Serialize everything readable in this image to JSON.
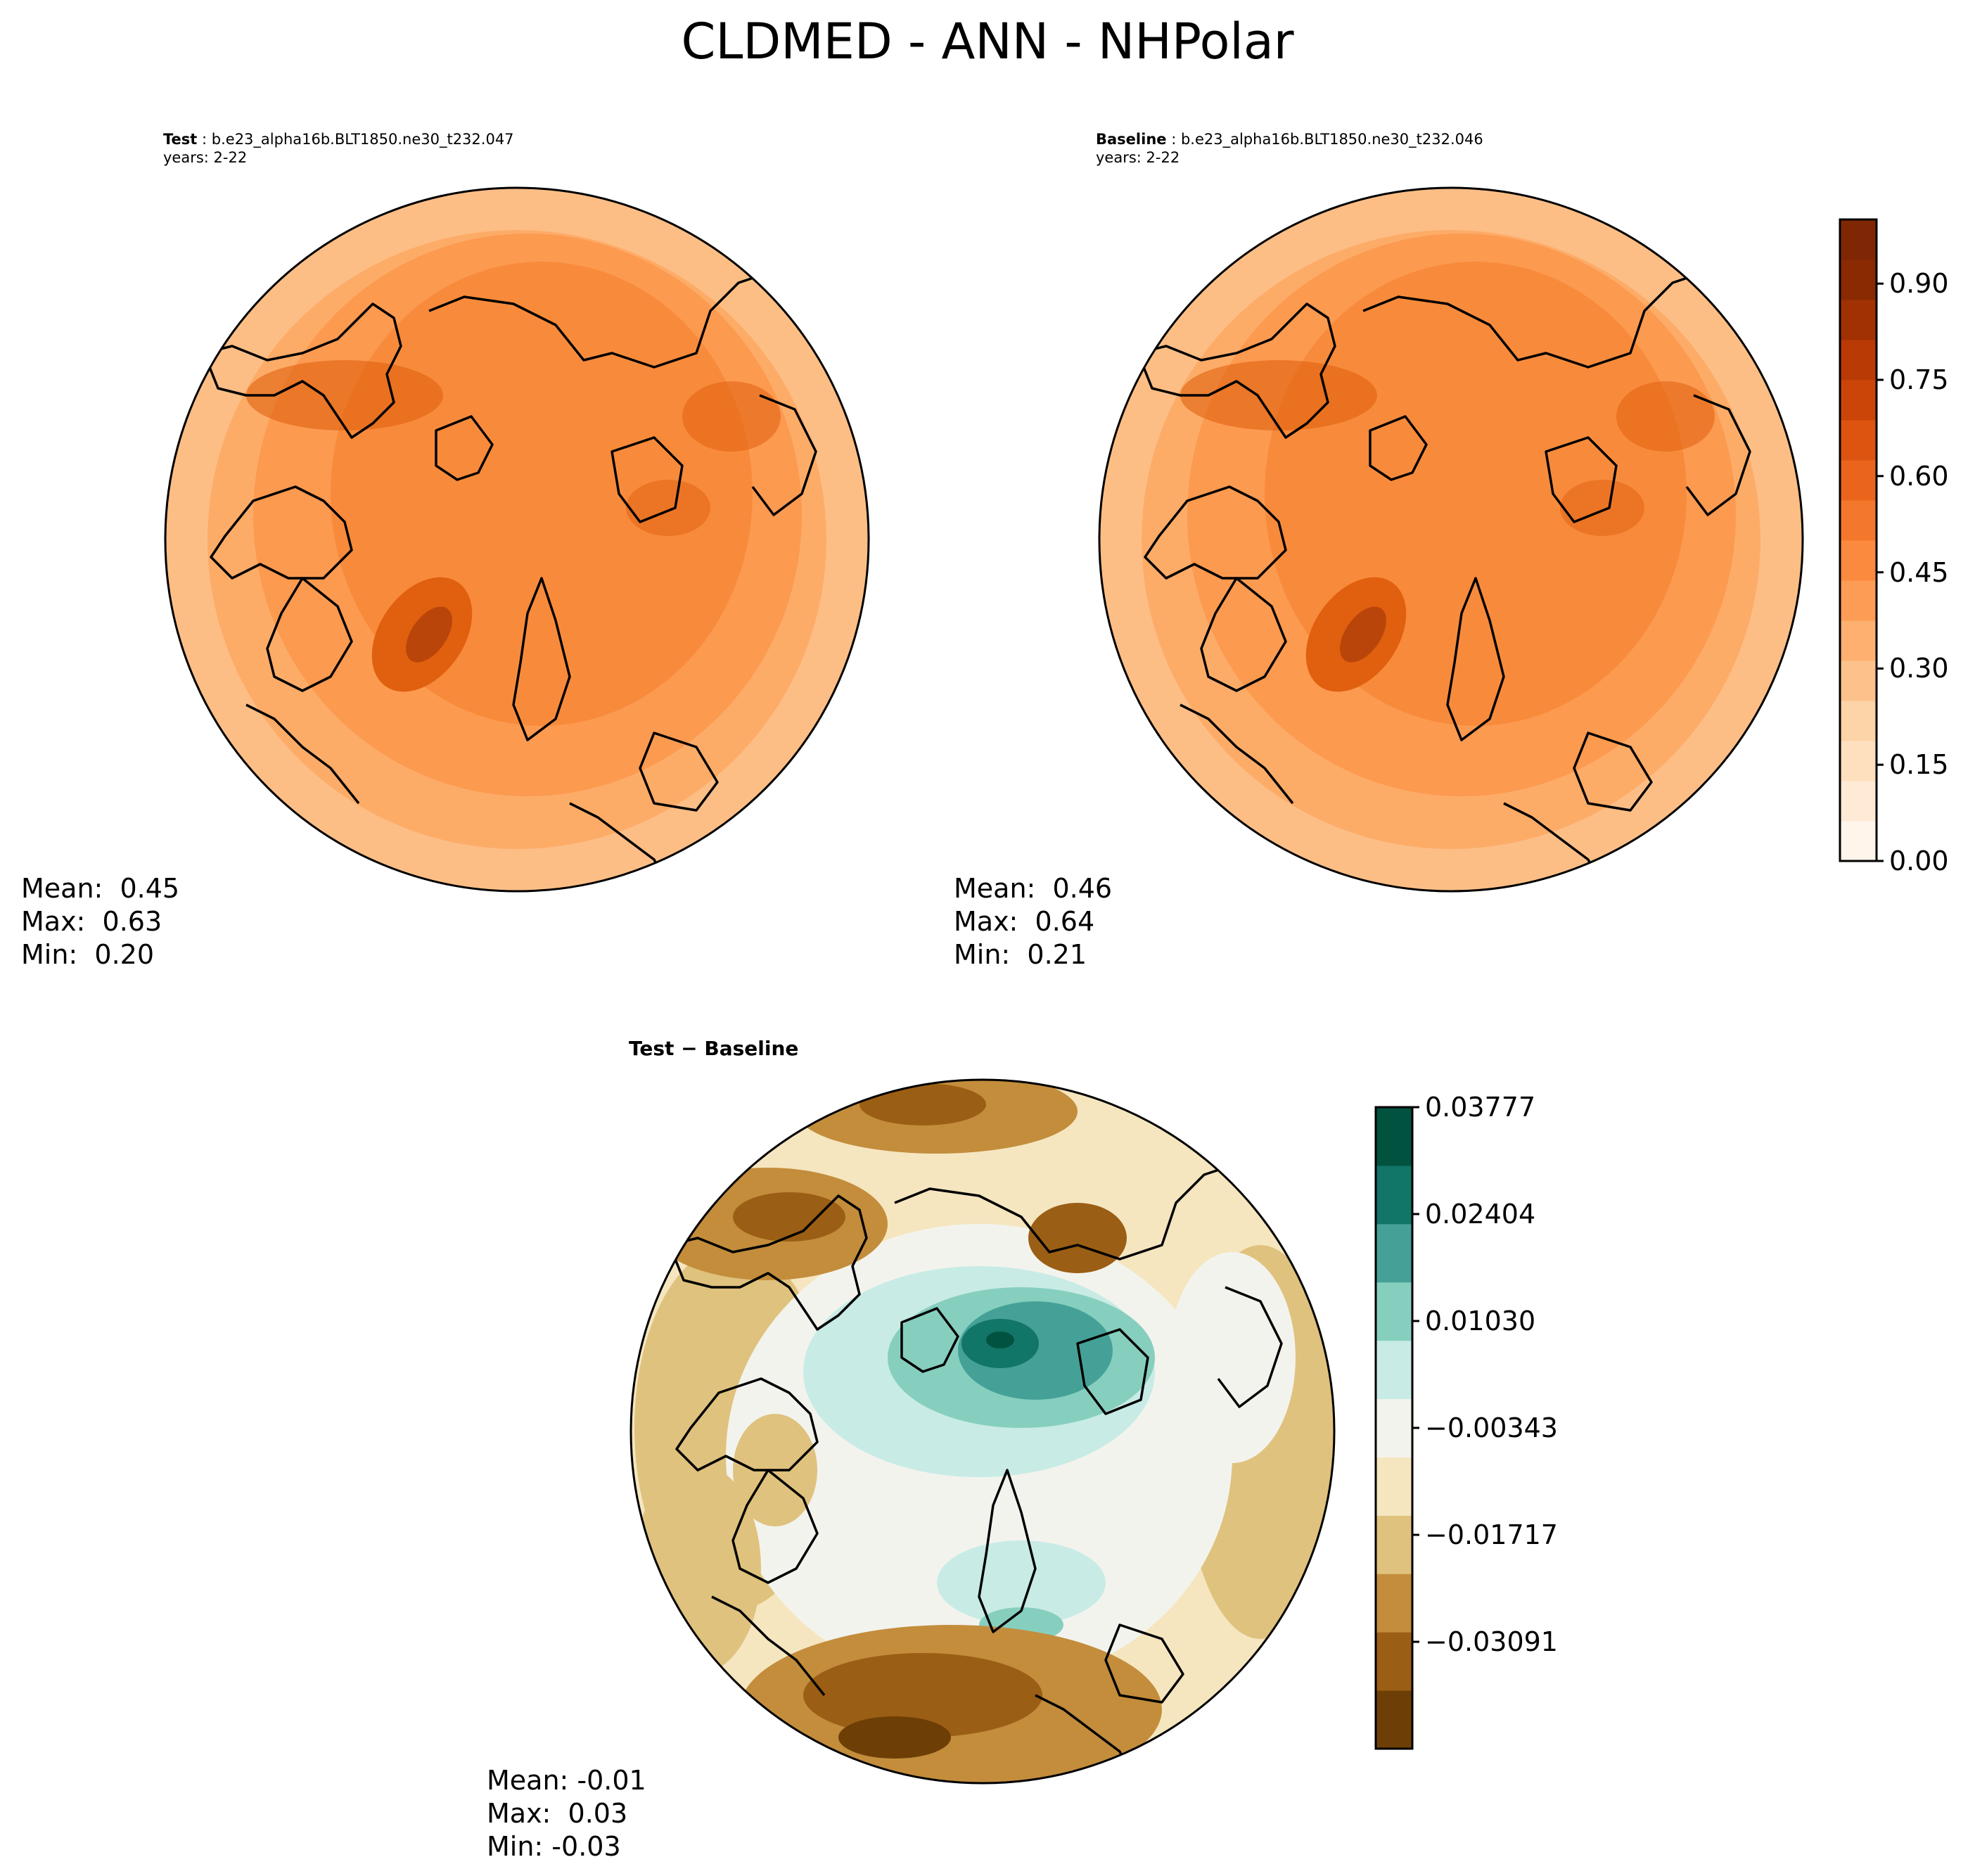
{
  "figure": {
    "title": "CLDMED - ANN - NHPolar"
  },
  "panels": [
    {
      "id": "test",
      "label": "Test",
      "case": "b.e23_alpha16b.BLT1850.ne30_t232.047",
      "years": "years: 2-22",
      "stats": {
        "mean": "Mean:  0.45",
        "max": "Max:  0.63",
        "min": "Min:  0.20"
      }
    },
    {
      "id": "baseline",
      "label": "Baseline",
      "case": "b.e23_alpha16b.BLT1850.ne30_t232.046",
      "years": "years: 2-22",
      "stats": {
        "mean": "Mean:  0.46",
        "max": "Max:  0.64",
        "min": "Min:  0.21"
      }
    },
    {
      "id": "diff",
      "label": "Test − Baseline",
      "stats": {
        "mean": "Mean: -0.01",
        "max": "Max:  0.03",
        "min": "Min: -0.03"
      }
    }
  ],
  "colorbars": {
    "main": {
      "ticks": [
        "0.00",
        "0.15",
        "0.30",
        "0.45",
        "0.60",
        "0.75",
        "0.90"
      ],
      "tick_values": [
        0.0,
        0.15,
        0.3,
        0.45,
        0.6,
        0.75,
        0.9
      ],
      "range": [
        0.0,
        1.0
      ],
      "colors": [
        "#fff5eb",
        "#feead5",
        "#fee0bf",
        "#fdd3a8",
        "#fdc28c",
        "#fdb06f",
        "#fd9d55",
        "#fc8a3e",
        "#f4782b",
        "#ea651b",
        "#dd5410",
        "#cc4508",
        "#b93a05",
        "#a13103",
        "#8a2a03",
        "#7f2704"
      ]
    },
    "diff": {
      "ticks": [
        "0.03777",
        "0.02404",
        "0.01030",
        "−0.00343",
        "−0.01717",
        "−0.03091"
      ],
      "tick_values": [
        0.03777,
        0.02404,
        0.0103,
        -0.00343,
        -0.01717,
        -0.03091
      ],
      "range": [
        -0.04464,
        0.03777
      ],
      "colors": [
        "#6d3f07",
        "#9b5e15",
        "#c38d3c",
        "#dfc27d",
        "#f5e6c0",
        "#f3f3ee",
        "#c8ebe5",
        "#86cfbf",
        "#45a197",
        "#117568",
        "#01523f"
      ]
    }
  },
  "map_colors": {
    "outer_ring": "#fdbe86",
    "ring2": "#fdac68",
    "ring3": "#fc9a50",
    "core": "#f88b3b",
    "dark": "#e0600f",
    "darkest": "#b9450a",
    "coast": "#000000"
  },
  "chart_data": [
    {
      "type": "heatmap",
      "title": "CLDMED - ANN - NHPolar",
      "series": [
        {
          "name": "Test",
          "summary": {
            "mean": 0.45,
            "max": 0.63,
            "min": 0.2
          }
        }
      ],
      "colorbar_range": [
        0.0,
        1.0
      ]
    },
    {
      "type": "heatmap",
      "series": [
        {
          "name": "Baseline",
          "summary": {
            "mean": 0.46,
            "max": 0.64,
            "min": 0.21
          }
        }
      ],
      "colorbar_range": [
        0.0,
        1.0
      ]
    },
    {
      "type": "heatmap",
      "series": [
        {
          "name": "Test − Baseline",
          "summary": {
            "mean": -0.01,
            "max": 0.03,
            "min": -0.03
          }
        }
      ],
      "colorbar_range": [
        -0.04464,
        0.03777
      ]
    }
  ]
}
